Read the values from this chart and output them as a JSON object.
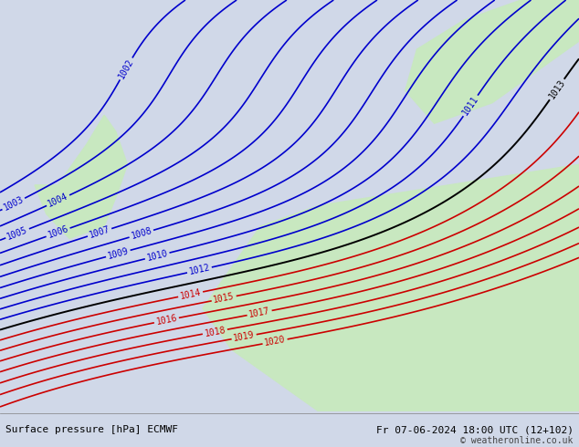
{
  "title_left": "Surface pressure [hPa] ECMWF",
  "title_right": "Fr 07-06-2024 18:00 UTC (12+102)",
  "copyright": "© weatheronline.co.uk",
  "bg_color": "#d0d8e8",
  "land_color": "#c8e8c0",
  "sea_color": "#d0d8e8",
  "contour_levels_blue": [
    1002,
    1003,
    1004,
    1005,
    1006,
    1007,
    1008,
    1009,
    1010,
    1011,
    1012
  ],
  "contour_levels_black": [
    1013
  ],
  "contour_levels_red": [
    1014,
    1015,
    1016,
    1017,
    1018,
    1019,
    1020
  ],
  "label_fontsize": 7,
  "footer_fontsize": 8,
  "blue_color": "#0000cc",
  "black_color": "#000000",
  "red_color": "#cc0000"
}
